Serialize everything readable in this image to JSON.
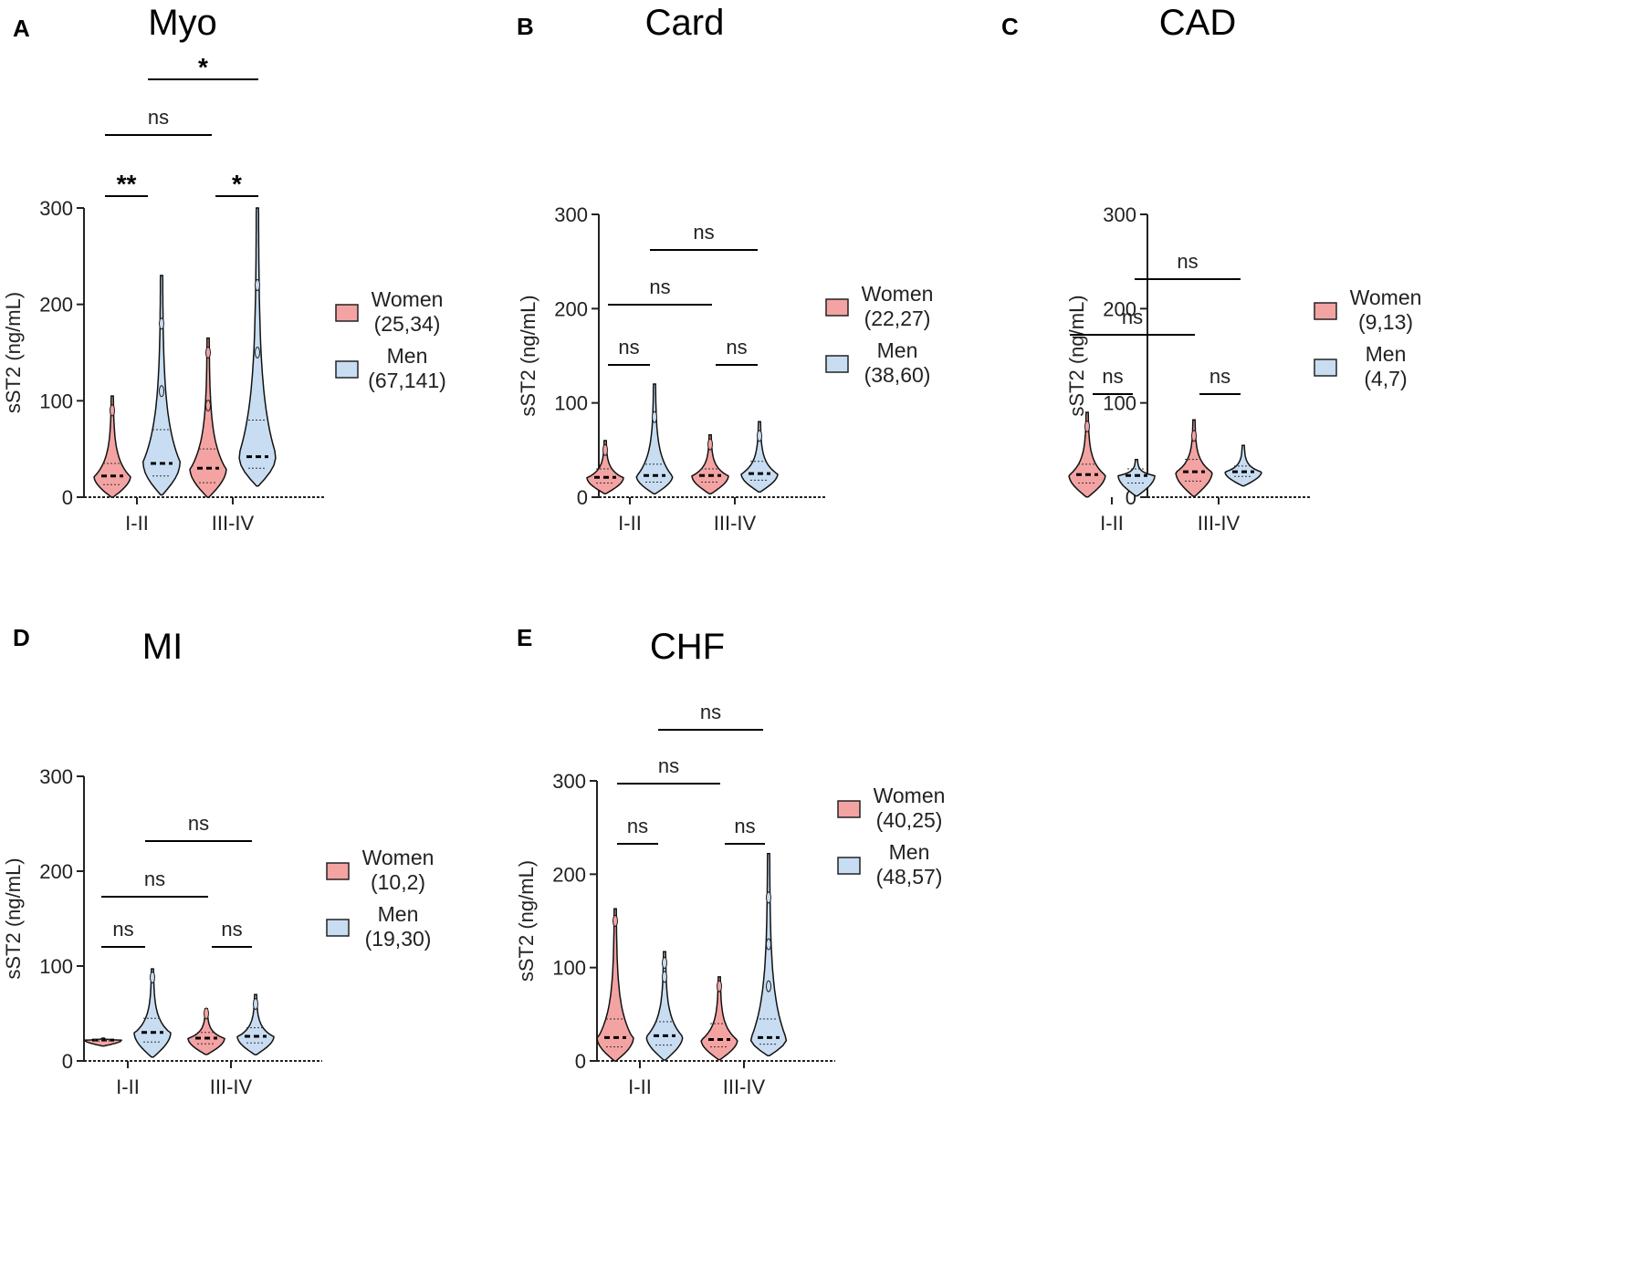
{
  "colors": {
    "women": "#f4a3a3",
    "men": "#c8ddf2",
    "stroke": "#111111",
    "women_mark": "#d9534f",
    "men_mark": "#7fa9d6"
  },
  "chart_data": [
    {
      "type": "violin",
      "panel_label": "A",
      "title": "Myo",
      "ylabel": "sST2 (ng/mL)",
      "ylim": [
        0,
        300
      ],
      "yticks": [
        0,
        100,
        200,
        300
      ],
      "categories": [
        "I-II",
        "III-IV"
      ],
      "series": [
        {
          "name": "Women",
          "counts": "(25,34)",
          "medians": [
            22,
            30
          ],
          "q1": [
            13,
            15
          ],
          "q3": [
            35,
            50
          ],
          "max": [
            105,
            165
          ],
          "outliers": [
            [
              90
            ],
            [
              95,
              150
            ]
          ]
        },
        {
          "name": "Men",
          "counts": "(67,141)",
          "medians": [
            35,
            42
          ],
          "q1": [
            22,
            30
          ],
          "q3": [
            70,
            80
          ],
          "max": [
            230,
            300
          ],
          "outliers": [
            [
              110,
              180
            ],
            [
              150,
              220
            ]
          ]
        }
      ],
      "comparisons": [
        {
          "group1": "Women I-II",
          "group2": "Men I-II",
          "label": "**"
        },
        {
          "group1": "Women III-IV",
          "group2": "Men III-IV",
          "label": "*"
        },
        {
          "group1": "Women I-II",
          "group2": "Women III-IV",
          "label": "ns"
        },
        {
          "group1": "Men I-II",
          "group2": "Men III-IV",
          "label": "*"
        }
      ]
    },
    {
      "type": "violin",
      "panel_label": "B",
      "title": "Card",
      "ylabel": "sST2 (ng/mL)",
      "ylim": [
        0,
        300
      ],
      "yticks": [
        0,
        100,
        200,
        300
      ],
      "categories": [
        "I-II",
        "III-IV"
      ],
      "series": [
        {
          "name": "Women",
          "counts": "(22,27)",
          "medians": [
            21,
            23
          ],
          "q1": [
            15,
            16
          ],
          "q3": [
            30,
            30
          ],
          "max": [
            60,
            66
          ],
          "outliers": [
            [
              50
            ],
            [
              56
            ]
          ]
        },
        {
          "name": "Men",
          "counts": "(38,60)",
          "medians": [
            23,
            25
          ],
          "q1": [
            16,
            18
          ],
          "q3": [
            35,
            38
          ],
          "max": [
            120,
            80
          ],
          "outliers": [
            [
              85
            ],
            [
              65
            ]
          ]
        }
      ],
      "comparisons": [
        {
          "group1": "Women I-II",
          "group2": "Men I-II",
          "label": "ns"
        },
        {
          "group1": "Women III-IV",
          "group2": "Men III-IV",
          "label": "ns"
        },
        {
          "group1": "Women I-II",
          "group2": "Women III-IV",
          "label": "ns"
        },
        {
          "group1": "Men I-II",
          "group2": "Men III-IV",
          "label": "ns"
        }
      ]
    },
    {
      "type": "violin",
      "panel_label": "C",
      "title": "CAD",
      "ylabel": "sST2 (ng/mL)",
      "ylim": [
        0,
        300
      ],
      "yticks": [
        0,
        100,
        200,
        300
      ],
      "categories": [
        "I-II",
        "III-IV"
      ],
      "series": [
        {
          "name": "Women",
          "counts": "(9,13)",
          "medians": [
            24,
            27
          ],
          "q1": [
            15,
            17
          ],
          "q3": [
            35,
            40
          ],
          "max": [
            90,
            82
          ],
          "outliers": [
            [
              75
            ],
            [
              65
            ]
          ]
        },
        {
          "name": "Men",
          "counts": "(4,7)",
          "medians": [
            23,
            27
          ],
          "q1": [
            15,
            22
          ],
          "q3": [
            30,
            33
          ],
          "max": [
            40,
            55
          ],
          "outliers": [
            [],
            []
          ]
        }
      ],
      "comparisons": [
        {
          "group1": "Women I-II",
          "group2": "Men I-II",
          "label": "ns"
        },
        {
          "group1": "Women III-IV",
          "group2": "Men III-IV",
          "label": "ns"
        },
        {
          "group1": "Women I-II",
          "group2": "Women III-IV",
          "label": "ns"
        },
        {
          "group1": "Men I-II",
          "group2": "Men III-IV",
          "label": "ns"
        }
      ]
    },
    {
      "type": "violin",
      "panel_label": "D",
      "title": "MI",
      "ylabel": "sST2 (ng/mL)",
      "ylim": [
        0,
        300
      ],
      "yticks": [
        0,
        100,
        200,
        300
      ],
      "categories": [
        "I-II",
        "III-IV"
      ],
      "series": [
        {
          "name": "Women",
          "counts": "(10,2)",
          "medians": [
            22,
            24
          ],
          "q1": [
            21,
            18
          ],
          "q3": [
            23,
            30
          ],
          "max": [
            24,
            55
          ],
          "outliers": [
            [],
            [
              50
            ]
          ]
        },
        {
          "name": "Men",
          "counts": "(19,30)",
          "medians": [
            30,
            26
          ],
          "q1": [
            20,
            19
          ],
          "q3": [
            45,
            35
          ],
          "max": [
            97,
            70
          ],
          "outliers": [
            [
              88
            ],
            [
              60
            ]
          ]
        }
      ],
      "comparisons": [
        {
          "group1": "Women I-II",
          "group2": "Men I-II",
          "label": "ns"
        },
        {
          "group1": "Women III-IV",
          "group2": "Men III-IV",
          "label": "ns"
        },
        {
          "group1": "Women I-II",
          "group2": "Women III-IV",
          "label": "ns"
        },
        {
          "group1": "Men I-II",
          "group2": "Men III-IV",
          "label": "ns"
        }
      ]
    },
    {
      "type": "violin",
      "panel_label": "E",
      "title": "CHF",
      "ylabel": "sST2 (ng/mL)",
      "ylim": [
        0,
        300
      ],
      "yticks": [
        0,
        100,
        200,
        300
      ],
      "categories": [
        "I-II",
        "III-IV"
      ],
      "series": [
        {
          "name": "Women",
          "counts": "(40,25)",
          "medians": [
            25,
            23
          ],
          "q1": [
            15,
            15
          ],
          "q3": [
            45,
            40
          ],
          "max": [
            163,
            90
          ],
          "outliers": [
            [
              150
            ],
            [
              80
            ]
          ]
        },
        {
          "name": "Men",
          "counts": "(48,57)",
          "medians": [
            27,
            25
          ],
          "q1": [
            17,
            18
          ],
          "q3": [
            42,
            45
          ],
          "max": [
            117,
            222
          ],
          "outliers": [
            [
              105,
              90
            ],
            [
              175,
              125,
              80
            ]
          ]
        }
      ],
      "comparisons": [
        {
          "group1": "Women I-II",
          "group2": "Men I-II",
          "label": "ns"
        },
        {
          "group1": "Women III-IV",
          "group2": "Men III-IV",
          "label": "ns"
        },
        {
          "group1": "Women I-II",
          "group2": "Women III-IV",
          "label": "ns"
        },
        {
          "group1": "Men I-II",
          "group2": "Men III-IV",
          "label": "ns"
        }
      ]
    }
  ]
}
